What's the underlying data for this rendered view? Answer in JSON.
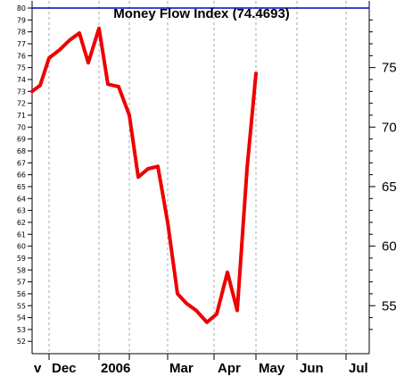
{
  "chart_data": {
    "type": "line",
    "title": "Money Flow Index (74.4693)",
    "ylim": [
      51,
      80
    ],
    "left_ticks": [
      52,
      53,
      54,
      55,
      56,
      57,
      58,
      59,
      60,
      61,
      62,
      63,
      64,
      65,
      66,
      67,
      68,
      69,
      70,
      71,
      72,
      73,
      74,
      75,
      76,
      77,
      78,
      79,
      80
    ],
    "right_ticks": [
      55,
      60,
      65,
      70,
      75
    ],
    "reference_line": {
      "value": 80,
      "color": "#0000cc"
    },
    "x_labels": [
      "v",
      "Dec",
      "2006",
      "Mar",
      "Apr",
      "May",
      "Jun",
      "Jul"
    ],
    "series": [
      {
        "color": "#ee0000",
        "values": [
          73.0,
          73.5,
          75.8,
          76.5,
          77.3,
          77.9,
          75.4,
          78.3,
          73.6,
          73.4,
          71.0,
          65.8,
          66.5,
          66.7,
          62.0,
          56.0,
          55.2,
          54.6,
          53.6,
          54.3,
          57.8,
          54.6,
          66.5,
          74.5
        ]
      }
    ]
  }
}
